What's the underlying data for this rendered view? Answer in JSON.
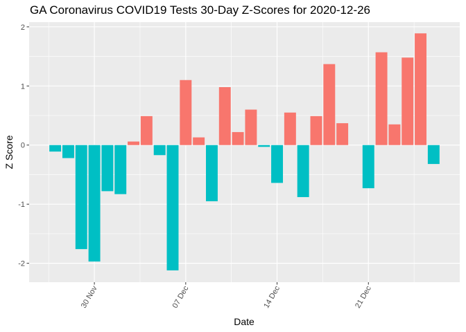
{
  "chart_data": {
    "type": "bar",
    "title": "GA Coronavirus COVID19 Tests 30-Day Z-Scores for 2020-12-26",
    "xlabel": "Date",
    "ylabel": "Z Score",
    "x_ticks": [
      {
        "label": "30 Nov",
        "date": "2020-11-30"
      },
      {
        "label": "07 Dec",
        "date": "2020-12-07"
      },
      {
        "label": "14 Dec",
        "date": "2020-12-14"
      },
      {
        "label": "21 Dec",
        "date": "2020-12-21"
      }
    ],
    "y_ticks": [
      -2,
      -1,
      0,
      1,
      2
    ],
    "ylim": [
      -2.32,
      2.08
    ],
    "xlim": [
      "2020-11-25",
      "2020-12-28"
    ],
    "grid": true,
    "legend": "none",
    "colors": {
      "positive": "#F8766D",
      "negative": "#00BFC4",
      "panel": "#EBEBEB",
      "grid": "#FFFFFF"
    },
    "x": [
      "2020-11-27",
      "2020-11-28",
      "2020-11-29",
      "2020-11-30",
      "2020-12-01",
      "2020-12-02",
      "2020-12-03",
      "2020-12-04",
      "2020-12-05",
      "2020-12-06",
      "2020-12-07",
      "2020-12-08",
      "2020-12-09",
      "2020-12-10",
      "2020-12-11",
      "2020-12-12",
      "2020-12-13",
      "2020-12-14",
      "2020-12-15",
      "2020-12-16",
      "2020-12-17",
      "2020-12-18",
      "2020-12-19",
      "2020-12-20",
      "2020-12-21",
      "2020-12-22",
      "2020-12-23",
      "2020-12-24",
      "2020-12-25",
      "2020-12-26"
    ],
    "values": [
      -0.11,
      -0.22,
      -1.76,
      -1.97,
      -0.78,
      -0.83,
      0.06,
      0.49,
      -0.17,
      -2.12,
      1.1,
      0.13,
      -0.95,
      0.98,
      0.22,
      0.6,
      -0.03,
      -0.64,
      0.55,
      -0.88,
      0.49,
      1.37,
      0.37,
      0.0,
      -0.73,
      1.57,
      0.35,
      1.48,
      1.89,
      -0.32
    ]
  }
}
